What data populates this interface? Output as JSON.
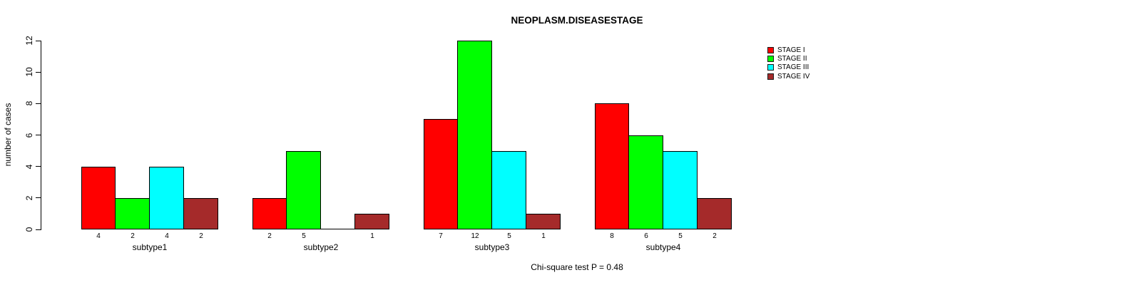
{
  "chart_data": {
    "type": "bar",
    "title": "NEOPLASM.DISEASESTAGE",
    "ylabel": "number of cases",
    "xlabel": "",
    "annotation": "Chi-square test P = 0.48",
    "categories": [
      "subtype1",
      "subtype2",
      "subtype3",
      "subtype4"
    ],
    "series": [
      {
        "name": "STAGE I",
        "color": "#ff0000",
        "values": [
          4,
          2,
          7,
          8
        ]
      },
      {
        "name": "STAGE II",
        "color": "#00ff00",
        "values": [
          2,
          5,
          12,
          6
        ]
      },
      {
        "name": "STAGE III",
        "color": "#00ffff",
        "values": [
          4,
          0,
          5,
          5
        ]
      },
      {
        "name": "STAGE IV",
        "color": "#a52a2a",
        "values": [
          2,
          1,
          1,
          2
        ]
      }
    ],
    "bar_value_labels": [
      [
        "4",
        "2",
        "4",
        "2"
      ],
      [
        "2",
        "5",
        "",
        "1"
      ],
      [
        "7",
        "12",
        "5",
        "1"
      ],
      [
        "8",
        "6",
        "5",
        "2"
      ]
    ],
    "ylim": [
      0,
      12
    ],
    "yticks": [
      0,
      2,
      4,
      6,
      8,
      10,
      12
    ],
    "grid": false,
    "legend_position": "top-right",
    "background": "#ffffff",
    "axis_color": "#000000"
  }
}
